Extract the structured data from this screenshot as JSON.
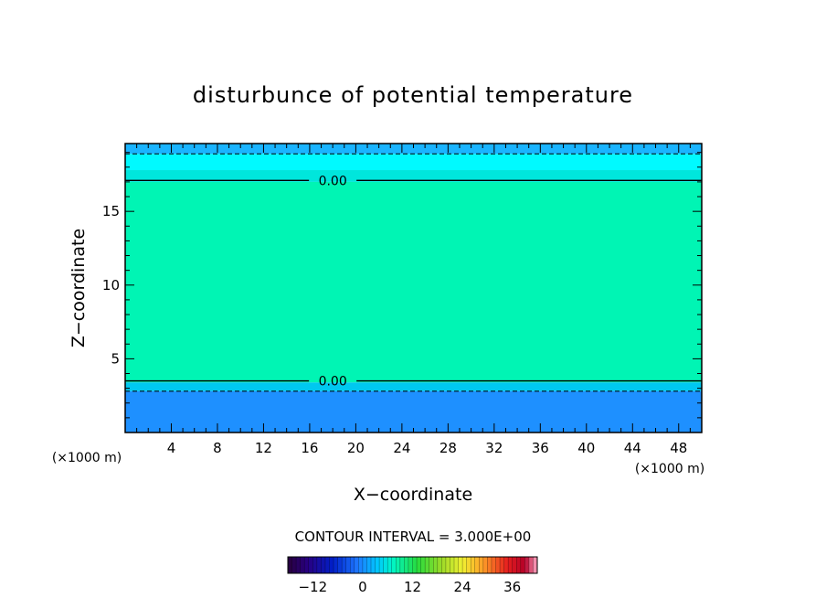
{
  "chart_data": {
    "type": "heatmap",
    "title": "disturbunce of potential temperature",
    "xlabel": "X−coordinate",
    "ylabel": "Z−coordinate",
    "x_unit_left": "(×1000 m)",
    "x_unit_right": "(×1000 m)",
    "xlim": [
      0,
      50
    ],
    "ylim": [
      0,
      19.6
    ],
    "x_ticks": [
      4,
      8,
      12,
      16,
      20,
      24,
      28,
      32,
      36,
      40,
      44,
      48
    ],
    "y_ticks": [
      5,
      10,
      15
    ],
    "color_bands": [
      {
        "z_from": 0,
        "z_to": 2.8,
        "color": "#1e90ff"
      },
      {
        "z_from": 2.8,
        "z_to": 3.4,
        "color": "#00c8f0"
      },
      {
        "z_from": 3.4,
        "z_to": 17.0,
        "color": "#00f5b4"
      },
      {
        "z_from": 17.0,
        "z_to": 17.8,
        "color": "#00e6dc"
      },
      {
        "z_from": 17.8,
        "z_to": 18.9,
        "color": "#00faff"
      },
      {
        "z_from": 18.9,
        "z_to": 19.6,
        "color": "#1ab4ff"
      }
    ],
    "contours": [
      {
        "level": 0.0,
        "label": "0.00",
        "style": "solid",
        "z": 17.1,
        "label_x": 18
      },
      {
        "level": 0.0,
        "label": "0.00",
        "style": "solid",
        "z": 3.5,
        "label_x": 18
      },
      {
        "level": -3.0,
        "style": "dashed",
        "z": 18.9
      },
      {
        "level": -3.0,
        "style": "dashed",
        "z": 2.8
      }
    ],
    "contour_interval": "CONTOUR INTERVAL = 3.000E+00",
    "colorbar": {
      "range": [
        -18,
        42
      ],
      "tick_values": [
        -12,
        0,
        12,
        24,
        36
      ],
      "tick_labels": [
        "−12",
        "0",
        "12",
        "24",
        "36"
      ]
    }
  }
}
